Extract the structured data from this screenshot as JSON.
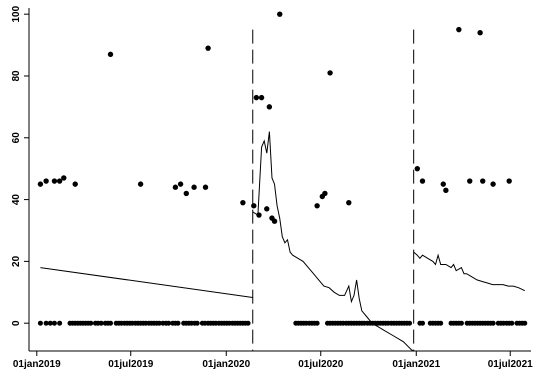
{
  "chart_data": {
    "type": "scatter",
    "title": "",
    "xlabel": "",
    "ylabel": "",
    "x_range": [
      "2018-12-17",
      "2021-08-10"
    ],
    "ylim": [
      -9,
      102
    ],
    "y_ticks": [
      0,
      20,
      40,
      60,
      80,
      100
    ],
    "x_ticks": [
      {
        "date": "2019-01-01",
        "label": "01jan2019"
      },
      {
        "date": "2019-07-01",
        "label": "01jul2019"
      },
      {
        "date": "2020-01-01",
        "label": "01jan2020"
      },
      {
        "date": "2020-07-01",
        "label": "01jul2020"
      },
      {
        "date": "2021-01-01",
        "label": "01jan2021"
      },
      {
        "date": "2021-07-01",
        "label": "01jul2021"
      }
    ],
    "grid": false,
    "reference_lines": [
      {
        "date": "2020-02-21",
        "style": "dashed"
      },
      {
        "date": "2020-12-27",
        "style": "dashed"
      }
    ],
    "point_color": "#000000",
    "line_color": "#000000",
    "points_zero_dates": [
      "2019-01-08",
      "2019-01-19",
      "2019-01-27",
      "2019-02-04",
      "2019-02-14",
      "2019-03-06",
      "2019-03-11",
      "2019-03-16",
      "2019-03-21",
      "2019-03-26",
      "2019-03-31",
      "2019-04-05",
      "2019-04-10",
      "2019-04-15",
      "2019-04-24",
      "2019-04-29",
      "2019-05-05",
      "2019-05-13",
      "2019-05-18",
      "2019-05-23",
      "2019-06-03",
      "2019-06-08",
      "2019-06-13",
      "2019-06-19",
      "2019-06-24",
      "2019-06-29",
      "2019-07-04",
      "2019-07-10",
      "2019-07-15",
      "2019-07-20",
      "2019-07-25",
      "2019-07-30",
      "2019-08-05",
      "2019-08-10",
      "2019-08-15",
      "2019-08-20",
      "2019-08-25",
      "2019-09-01",
      "2019-09-07",
      "2019-09-12",
      "2019-09-20",
      "2019-09-25",
      "2019-09-30",
      "2019-10-11",
      "2019-10-16",
      "2019-10-21",
      "2019-10-26",
      "2019-11-01",
      "2019-11-06",
      "2019-11-16",
      "2019-11-21",
      "2019-11-27",
      "2019-12-02",
      "2019-12-07",
      "2019-12-12",
      "2019-12-18",
      "2019-12-23",
      "2019-12-28",
      "2020-01-02",
      "2020-01-07",
      "2020-01-13",
      "2020-01-18",
      "2020-01-23",
      "2020-01-28",
      "2020-02-02",
      "2020-02-07",
      "2020-02-12",
      "2020-05-14",
      "2020-05-19",
      "2020-05-24",
      "2020-05-29",
      "2020-06-03",
      "2020-06-09",
      "2020-06-14",
      "2020-06-19",
      "2020-06-24",
      "2020-07-14",
      "2020-07-19",
      "2020-07-24",
      "2020-07-29",
      "2020-08-03",
      "2020-08-08",
      "2020-08-13",
      "2020-08-19",
      "2020-08-24",
      "2020-08-29",
      "2020-09-03",
      "2020-09-08",
      "2020-09-13",
      "2020-09-18",
      "2020-09-23",
      "2020-09-29",
      "2020-10-04",
      "2020-10-09",
      "2020-10-14",
      "2020-10-19",
      "2020-10-24",
      "2020-10-29",
      "2020-11-03",
      "2020-11-08",
      "2020-11-14",
      "2020-11-19",
      "2020-11-24",
      "2020-11-29",
      "2020-12-04",
      "2020-12-09",
      "2020-12-14",
      "2020-12-19",
      "2021-01-08",
      "2021-01-13",
      "2021-01-28",
      "2021-02-02",
      "2021-02-07",
      "2021-02-12",
      "2021-02-17",
      "2021-03-09",
      "2021-03-14",
      "2021-03-19",
      "2021-03-24",
      "2021-03-29",
      "2021-04-09",
      "2021-04-14",
      "2021-04-19",
      "2021-04-24",
      "2021-04-29",
      "2021-05-04",
      "2021-05-09",
      "2021-05-14",
      "2021-05-19",
      "2021-05-24",
      "2021-05-29",
      "2021-06-08",
      "2021-06-13",
      "2021-06-18",
      "2021-06-24",
      "2021-06-29",
      "2021-07-04",
      "2021-07-14",
      "2021-07-19",
      "2021-07-24",
      "2021-07-29"
    ],
    "points_nonzero": [
      {
        "date": "2019-01-08",
        "y": 45
      },
      {
        "date": "2019-01-19",
        "y": 46
      },
      {
        "date": "2019-02-04",
        "y": 46
      },
      {
        "date": "2019-02-14",
        "y": 46
      },
      {
        "date": "2019-02-22",
        "y": 47
      },
      {
        "date": "2019-03-16",
        "y": 45
      },
      {
        "date": "2019-05-23",
        "y": 87
      },
      {
        "date": "2019-07-20",
        "y": 45
      },
      {
        "date": "2019-09-25",
        "y": 44
      },
      {
        "date": "2019-10-05",
        "y": 45
      },
      {
        "date": "2019-10-16",
        "y": 42
      },
      {
        "date": "2019-10-31",
        "y": 44
      },
      {
        "date": "2019-11-22",
        "y": 44
      },
      {
        "date": "2019-11-27",
        "y": 89
      },
      {
        "date": "2020-02-02",
        "y": 39
      },
      {
        "date": "2020-02-23",
        "y": 38
      },
      {
        "date": "2020-02-28",
        "y": 73
      },
      {
        "date": "2020-03-04",
        "y": 35
      },
      {
        "date": "2020-03-09",
        "y": 73
      },
      {
        "date": "2020-03-19",
        "y": 37
      },
      {
        "date": "2020-03-24",
        "y": 70
      },
      {
        "date": "2020-03-29",
        "y": 34
      },
      {
        "date": "2020-04-03",
        "y": 33
      },
      {
        "date": "2020-04-13",
        "y": 100
      },
      {
        "date": "2020-06-24",
        "y": 38
      },
      {
        "date": "2020-07-04",
        "y": 41
      },
      {
        "date": "2020-07-09",
        "y": 42
      },
      {
        "date": "2020-07-19",
        "y": 81
      },
      {
        "date": "2020-08-24",
        "y": 39
      },
      {
        "date": "2021-01-03",
        "y": 50
      },
      {
        "date": "2021-01-13",
        "y": 46
      },
      {
        "date": "2021-02-22",
        "y": 45
      },
      {
        "date": "2021-02-27",
        "y": 43
      },
      {
        "date": "2021-03-24",
        "y": 95
      },
      {
        "date": "2021-04-14",
        "y": 46
      },
      {
        "date": "2021-05-04",
        "y": 94
      },
      {
        "date": "2021-05-09",
        "y": 46
      },
      {
        "date": "2021-05-29",
        "y": 45
      },
      {
        "date": "2021-06-29",
        "y": 46
      }
    ],
    "fit_lines": [
      {
        "points": [
          [
            "2019-01-08",
            18
          ],
          [
            "2020-02-21",
            8.3
          ]
        ]
      },
      {
        "points": [
          [
            "2020-02-21",
            36
          ],
          [
            "2020-03-02",
            35
          ],
          [
            "2020-03-09",
            57
          ],
          [
            "2020-03-14",
            59
          ],
          [
            "2020-03-19",
            55
          ],
          [
            "2020-03-24",
            62
          ],
          [
            "2020-03-29",
            47
          ],
          [
            "2020-04-03",
            45
          ],
          [
            "2020-04-08",
            38
          ],
          [
            "2020-04-13",
            34
          ],
          [
            "2020-04-18",
            28
          ],
          [
            "2020-04-23",
            26
          ],
          [
            "2020-04-28",
            27
          ],
          [
            "2020-05-03",
            23
          ],
          [
            "2020-05-08",
            22
          ],
          [
            "2020-05-18",
            21
          ],
          [
            "2020-05-28",
            20
          ],
          [
            "2020-06-07",
            18
          ],
          [
            "2020-06-17",
            16
          ],
          [
            "2020-06-27",
            14
          ],
          [
            "2020-07-07",
            12
          ],
          [
            "2020-07-17",
            11.5
          ],
          [
            "2020-07-27",
            10
          ],
          [
            "2020-08-06",
            9
          ],
          [
            "2020-08-16",
            9
          ],
          [
            "2020-08-24",
            12
          ],
          [
            "2020-08-29",
            7
          ],
          [
            "2020-09-03",
            9
          ],
          [
            "2020-09-08",
            14
          ],
          [
            "2020-09-13",
            8
          ],
          [
            "2020-09-18",
            4
          ],
          [
            "2020-09-28",
            2
          ],
          [
            "2020-10-08",
            0
          ],
          [
            "2020-10-28",
            -2
          ],
          [
            "2020-11-17",
            -4
          ],
          [
            "2020-12-07",
            -6
          ],
          [
            "2020-12-22",
            -8.5
          ],
          [
            "2020-12-27",
            -9
          ]
        ]
      },
      {
        "points": [
          [
            "2020-12-27",
            23
          ],
          [
            "2021-01-03",
            22
          ],
          [
            "2021-01-08",
            21
          ],
          [
            "2021-01-13",
            22
          ],
          [
            "2021-01-23",
            21
          ],
          [
            "2021-02-02",
            20
          ],
          [
            "2021-02-07",
            19
          ],
          [
            "2021-02-12",
            22
          ],
          [
            "2021-02-17",
            19
          ],
          [
            "2021-02-27",
            19
          ],
          [
            "2021-03-09",
            18
          ],
          [
            "2021-03-14",
            19
          ],
          [
            "2021-03-19",
            17
          ],
          [
            "2021-03-29",
            18
          ],
          [
            "2021-04-03",
            16
          ],
          [
            "2021-04-08",
            16
          ],
          [
            "2021-04-18",
            15
          ],
          [
            "2021-04-28",
            14
          ],
          [
            "2021-05-08",
            13.5
          ],
          [
            "2021-05-18",
            13
          ],
          [
            "2021-05-28",
            12.5
          ],
          [
            "2021-06-07",
            12.5
          ],
          [
            "2021-06-17",
            12.5
          ],
          [
            "2021-06-27",
            12
          ],
          [
            "2021-07-07",
            12
          ],
          [
            "2021-07-17",
            11.5
          ],
          [
            "2021-07-29",
            10.5
          ]
        ]
      }
    ]
  }
}
